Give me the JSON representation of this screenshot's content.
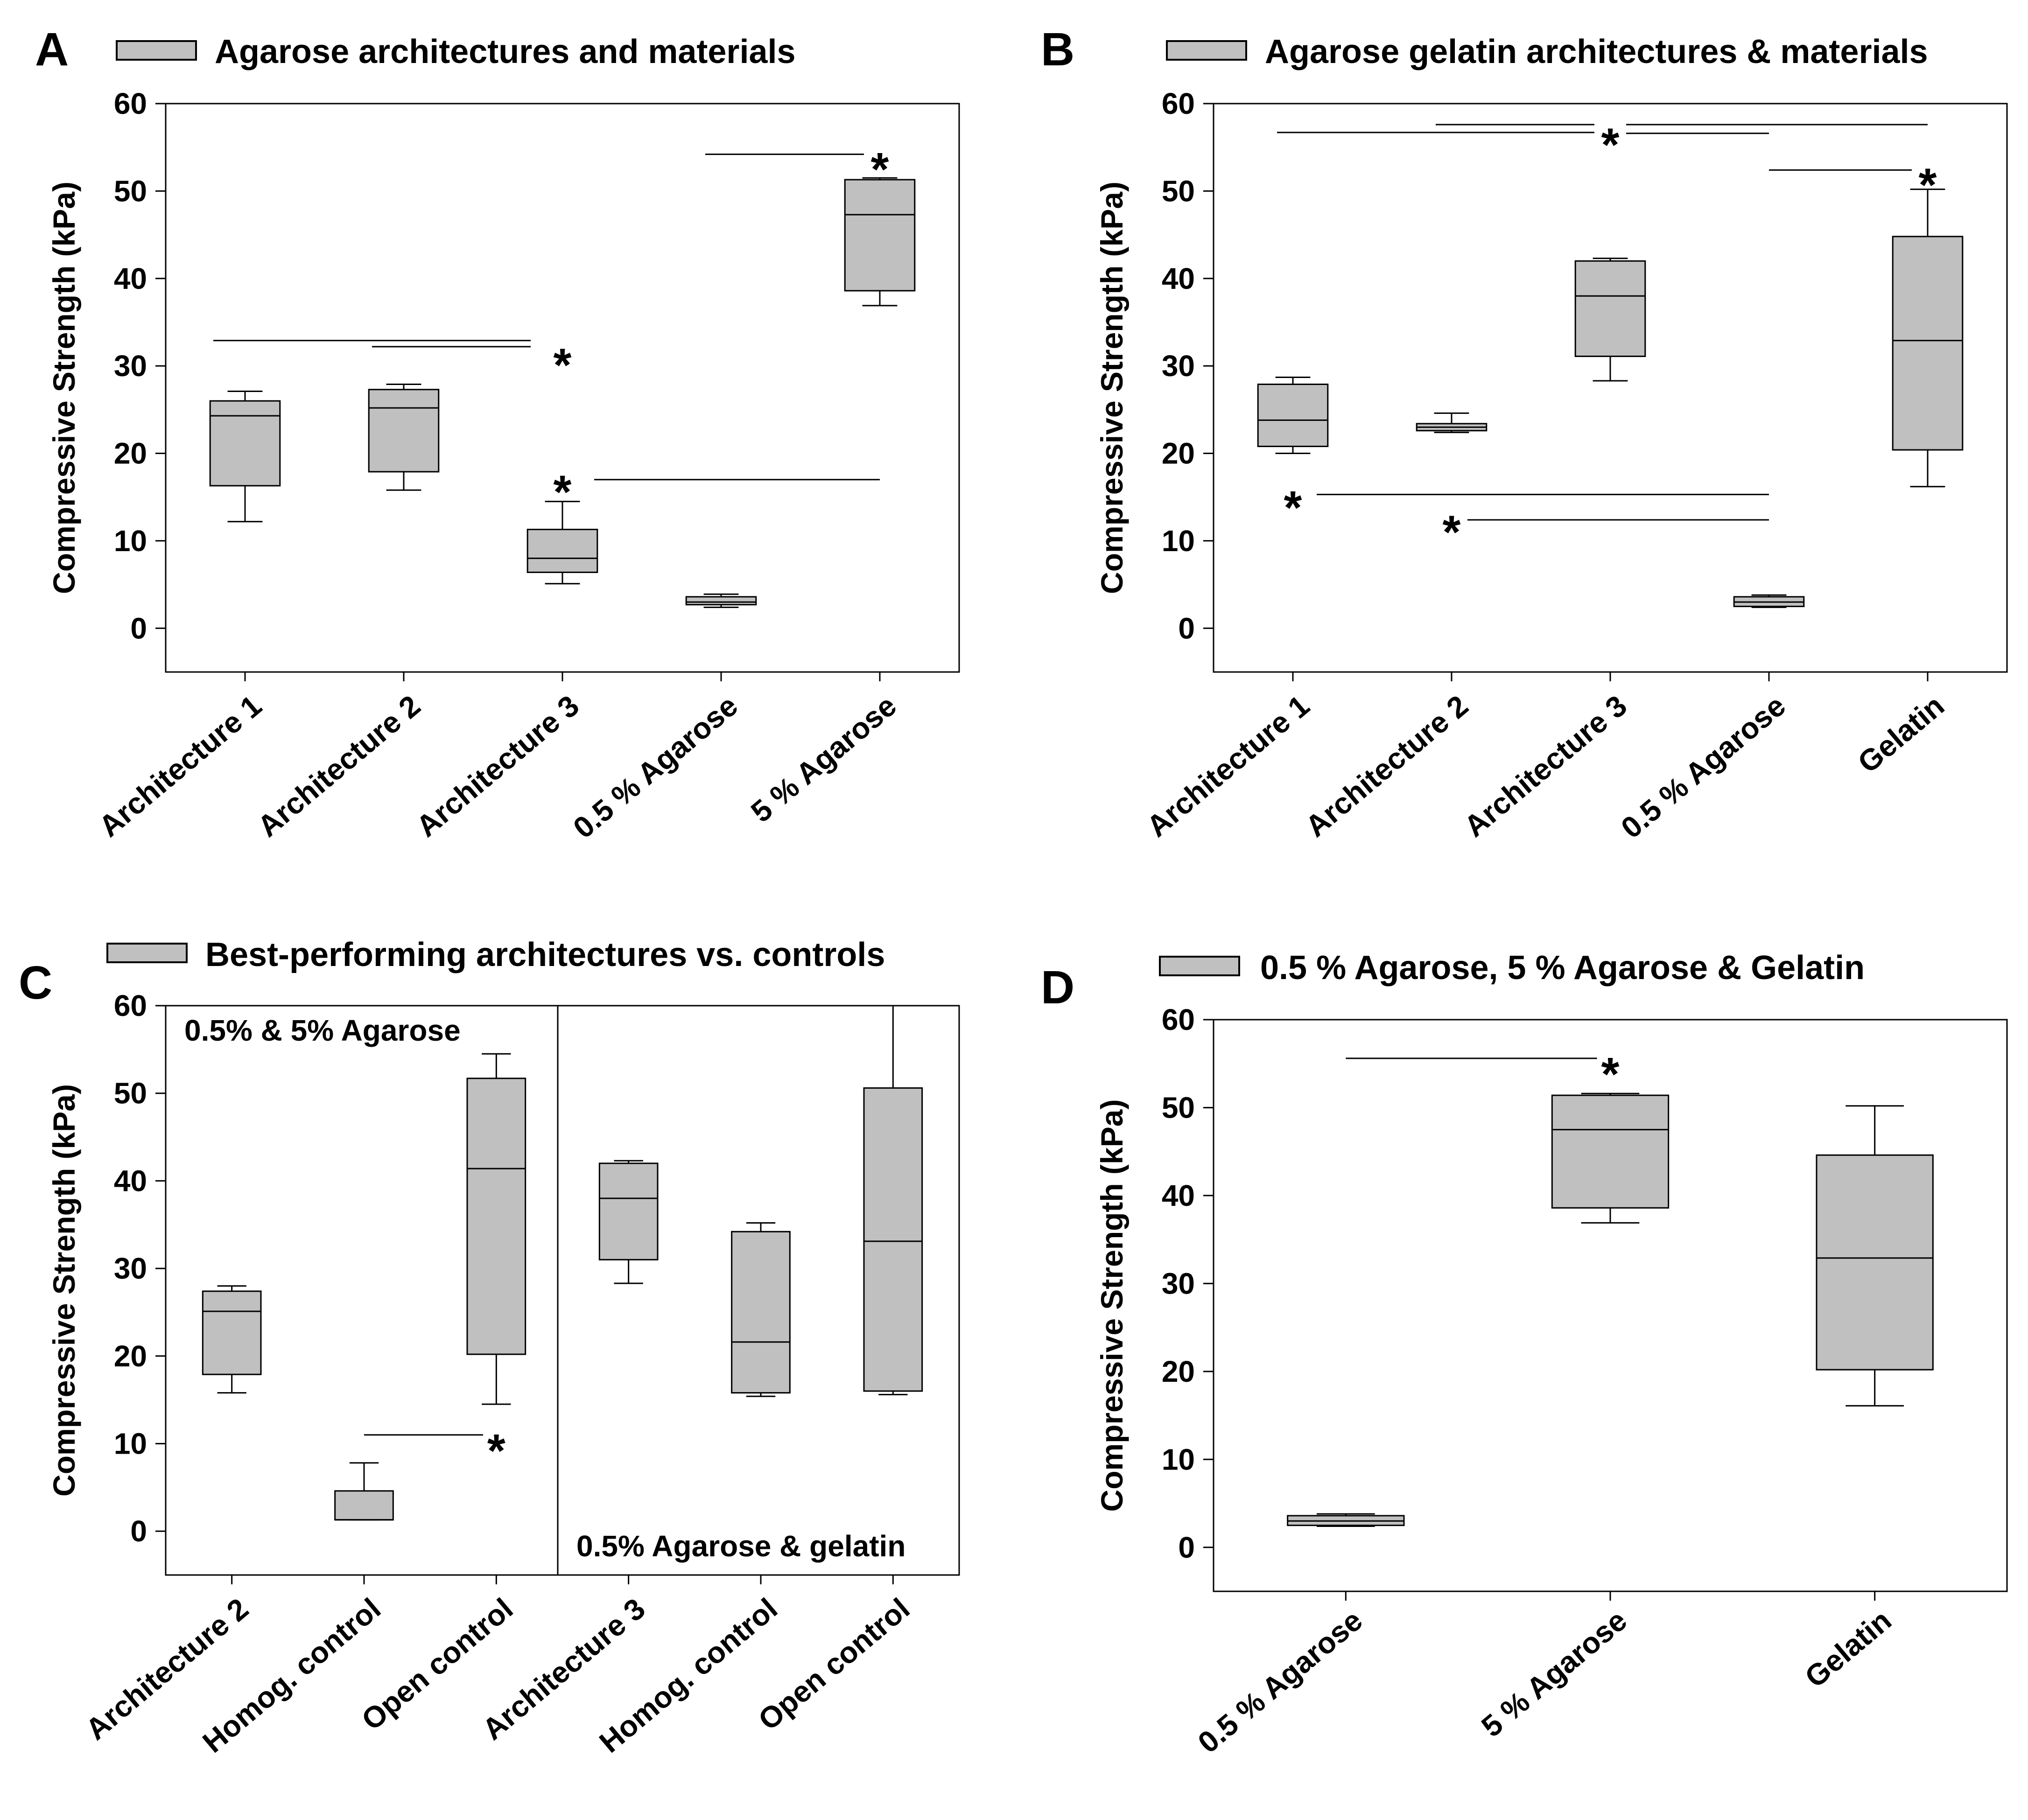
{
  "figure": {
    "panels": [
      {
        "letter": "A"
      },
      {
        "letter": "B"
      },
      {
        "letter": "C"
      },
      {
        "letter": "D"
      }
    ]
  },
  "chart_data": [
    {
      "type": "box",
      "title": "",
      "legend": "Agarose architectures and materials",
      "ylabel": "Compressive Strength (kPa)",
      "xlabel": "",
      "ylim": [
        -5,
        60
      ],
      "yticks": [
        0,
        10,
        20,
        30,
        40,
        50,
        60
      ],
      "categories": [
        "Architecture 1",
        "Architecture 2",
        "Architecture 3",
        "0.5 % Agarose",
        "5 % Agarose"
      ],
      "boxes": [
        {
          "min": 12.2,
          "q1": 16.3,
          "median": 24.3,
          "q3": 26.0,
          "max": 27.1
        },
        {
          "min": 15.8,
          "q1": 17.9,
          "median": 25.2,
          "q3": 27.3,
          "max": 27.9
        },
        {
          "min": 5.1,
          "q1": 6.4,
          "median": 8.0,
          "q3": 11.3,
          "max": 14.5
        },
        {
          "min": 2.4,
          "q1": 2.7,
          "median": 3.0,
          "q3": 3.6,
          "max": 3.9
        },
        {
          "min": 36.9,
          "q1": 38.6,
          "median": 47.3,
          "q3": 51.3,
          "max": 51.5
        }
      ],
      "significance": [
        {
          "from": 3.9,
          "to": 4.9,
          "y": 54.2,
          "star_x": 5.0,
          "star_y": 53.6
        },
        {
          "from": 0.8,
          "to": 2.8,
          "y": 32.9,
          "star_x": 3.0,
          "star_y": 31.2
        },
        {
          "from": 1.8,
          "to": 2.8,
          "y": 32.2,
          "star_x": null,
          "star_y": null
        },
        {
          "from": 3.2,
          "to": 5.0,
          "y": 17.0,
          "star_x": 3.0,
          "star_y": 16.7
        }
      ],
      "notes": []
    },
    {
      "type": "box",
      "title": "",
      "legend": "Agarose gelatin architectures & materials",
      "ylabel": "Compressive Strength (kPa)",
      "xlabel": "",
      "ylim": [
        -5,
        60
      ],
      "yticks": [
        0,
        10,
        20,
        30,
        40,
        50,
        60
      ],
      "categories": [
        "Architecture 1",
        "Architecture 2",
        "Architecture 3",
        "0.5 % Agarose",
        "Gelatin"
      ],
      "boxes": [
        {
          "min": 20.0,
          "q1": 20.8,
          "median": 23.8,
          "q3": 27.9,
          "max": 28.7
        },
        {
          "min": 22.4,
          "q1": 22.6,
          "median": 23.0,
          "q3": 23.4,
          "max": 24.6
        },
        {
          "min": 28.3,
          "q1": 31.1,
          "median": 38.0,
          "q3": 42.0,
          "max": 42.3
        },
        {
          "min": 2.4,
          "q1": 2.5,
          "median": 3.0,
          "q3": 3.6,
          "max": 3.8
        },
        {
          "min": 16.2,
          "q1": 20.4,
          "median": 32.9,
          "q3": 44.8,
          "max": 50.2
        }
      ],
      "significance": [
        {
          "from": 0.9,
          "to": 2.9,
          "y": 56.7,
          "star_x": 3.0,
          "star_y": 56.4
        },
        {
          "from": 1.9,
          "to": 2.9,
          "y": 57.6,
          "star_x": null,
          "star_y": null
        },
        {
          "from": 3.1,
          "to": 4.0,
          "y": 56.6,
          "star_x": null,
          "star_y": null
        },
        {
          "from": 3.1,
          "to": 5.0,
          "y": 57.6,
          "star_x": null,
          "star_y": null
        },
        {
          "from": 4.0,
          "to": 4.9,
          "y": 52.4,
          "star_x": 5.0,
          "star_y": 51.8
        },
        {
          "from": 1.15,
          "to": 4.0,
          "y": 15.3,
          "star_x": 1.0,
          "star_y": 14.9
        },
        {
          "from": 2.1,
          "to": 4.0,
          "y": 12.4,
          "star_x": 2.0,
          "star_y": 12.1
        }
      ],
      "notes": []
    },
    {
      "type": "box",
      "title": "",
      "legend": "Best-performing architectures vs. controls",
      "ylabel": "Compressive Strength (kPa)",
      "xlabel": "",
      "ylim": [
        -5,
        60
      ],
      "yticks": [
        0,
        10,
        20,
        30,
        40,
        50,
        60
      ],
      "categories": [
        "Architecture 2",
        "Homog. control",
        "Open control",
        "Architecture 3",
        "Homog. control",
        "Open control"
      ],
      "boxes": [
        {
          "min": 15.8,
          "q1": 17.9,
          "median": 25.1,
          "q3": 27.4,
          "max": 28.0
        },
        {
          "min": 1.3,
          "q1": 1.3,
          "median": 1.3,
          "q3": 4.6,
          "max": 7.8
        },
        {
          "min": 14.5,
          "q1": 20.2,
          "median": 41.4,
          "q3": 51.7,
          "max": 54.5
        },
        {
          "min": 28.3,
          "q1": 31.0,
          "median": 38.0,
          "q3": 42.0,
          "max": 42.3
        },
        {
          "min": 15.4,
          "q1": 15.8,
          "median": 21.6,
          "q3": 34.2,
          "max": 35.2
        },
        {
          "min": 15.6,
          "q1": 16.0,
          "median": 33.1,
          "q3": 50.6,
          "max": 60
        }
      ],
      "divider_after": 3,
      "significance": [
        {
          "from": 2.0,
          "to": 2.9,
          "y": 11.0,
          "star_x": 3.0,
          "star_y": 10.3
        }
      ],
      "notes": [
        "0.5% & 5% Agarose",
        "0.5% Agarose & gelatin"
      ]
    },
    {
      "type": "box",
      "title": "",
      "legend": "0.5 % Agarose, 5 % Agarose & Gelatin",
      "ylabel": "Compressive Strength (kPa)",
      "xlabel": "",
      "ylim": [
        -5,
        60
      ],
      "yticks": [
        0,
        10,
        20,
        30,
        40,
        50,
        60
      ],
      "categories": [
        "0.5 % Agarose",
        "5 % Agarose",
        "Gelatin"
      ],
      "boxes": [
        {
          "min": 2.4,
          "q1": 2.5,
          "median": 3.0,
          "q3": 3.6,
          "max": 3.8
        },
        {
          "min": 36.9,
          "q1": 38.6,
          "median": 47.5,
          "q3": 51.4,
          "max": 51.6
        },
        {
          "min": 16.1,
          "q1": 20.2,
          "median": 32.9,
          "q3": 44.6,
          "max": 50.2
        }
      ],
      "significance": [
        {
          "from": 1.0,
          "to": 1.95,
          "y": 55.6,
          "star_x": 2.0,
          "star_y": 54.9
        }
      ],
      "notes": []
    }
  ]
}
